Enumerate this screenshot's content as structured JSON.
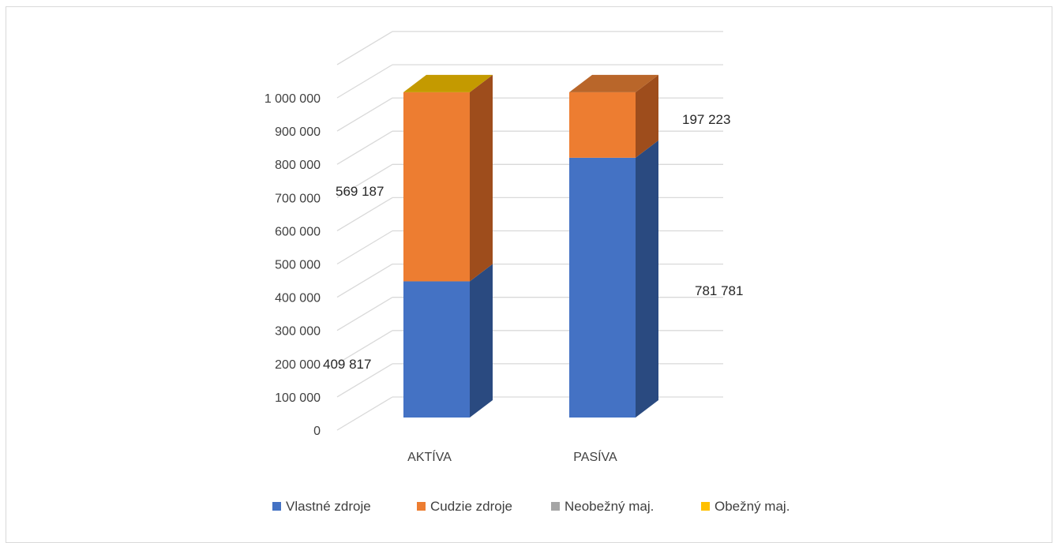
{
  "chart_data": {
    "type": "bar",
    "stacked": true,
    "style": "3d",
    "categories": [
      "AKTÍVA",
      "PASÍVA"
    ],
    "series": [
      {
        "name": "Vlastné zdroje",
        "color": "#4472C4",
        "side_color": "#2A4A80",
        "values": [
          409817,
          781781
        ]
      },
      {
        "name": "Cudzie zdroje",
        "color": "#ED7D31",
        "side_color": "#9E4D1C",
        "values": [
          569187,
          197223
        ]
      },
      {
        "name": "Neobežný maj.",
        "color": "#A5A5A5",
        "side_color": "#6E6E6E",
        "values": [
          0,
          0
        ]
      },
      {
        "name": "Obežný maj.",
        "color": "#FFC000",
        "side_color": "#B38600",
        "values": [
          0,
          0
        ]
      }
    ],
    "data_labels": [
      {
        "series": 0,
        "category": 0,
        "text": "409 817"
      },
      {
        "series": 1,
        "category": 0,
        "text": "569 187"
      },
      {
        "series": 0,
        "category": 1,
        "text": "781 781"
      },
      {
        "series": 1,
        "category": 1,
        "text": "197 223"
      }
    ],
    "y_ticks": [
      "0",
      "100 000",
      "200 000",
      "300 000",
      "400 000",
      "500 000",
      "600 000",
      "700 000",
      "800 000",
      "900 000",
      "1 000 000"
    ],
    "ylim": [
      0,
      1000000
    ],
    "grid": true,
    "legend_position": "bottom",
    "gridline_color": "#d9d9d9"
  }
}
